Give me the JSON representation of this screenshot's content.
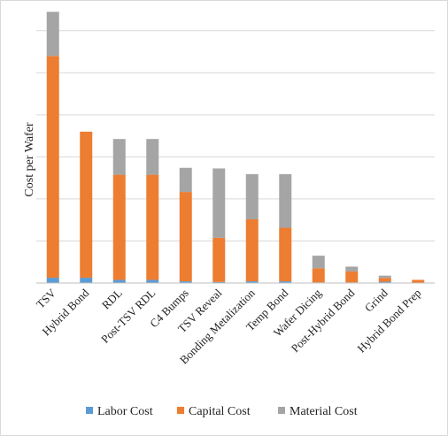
{
  "chart_data": {
    "type": "bar",
    "stacked": true,
    "title": "",
    "xlabel": "",
    "ylabel": "Cost per Wafer",
    "ylim": [
      0,
      1300
    ],
    "y_tick_labels_shown": false,
    "grid": "horizontal",
    "legend_position": "bottom",
    "categories": [
      "TSV",
      "Hybrid Bond",
      "RDL",
      "Post-TSV RDL",
      "C4 Bumps",
      "TSV Reveal",
      "Bonding Metalization",
      "Temp Bond",
      "Wafer Dicing",
      "Post-Hybrid Bond",
      "Grind",
      "Hybrid Bond Prep"
    ],
    "series": [
      {
        "name": "Labor Cost",
        "color": "#5b9bd5",
        "values": [
          25,
          25,
          15,
          15,
          8,
          5,
          8,
          8,
          3,
          3,
          6,
          2
        ]
      },
      {
        "name": "Capital Cost",
        "color": "#ed7d31",
        "values": [
          1055,
          695,
          500,
          500,
          425,
          210,
          295,
          255,
          67,
          52,
          18,
          13
        ]
      },
      {
        "name": "Material Cost",
        "color": "#a5a5a5",
        "values": [
          210,
          0,
          170,
          170,
          115,
          330,
          215,
          255,
          60,
          23,
          11,
          0
        ]
      }
    ]
  }
}
